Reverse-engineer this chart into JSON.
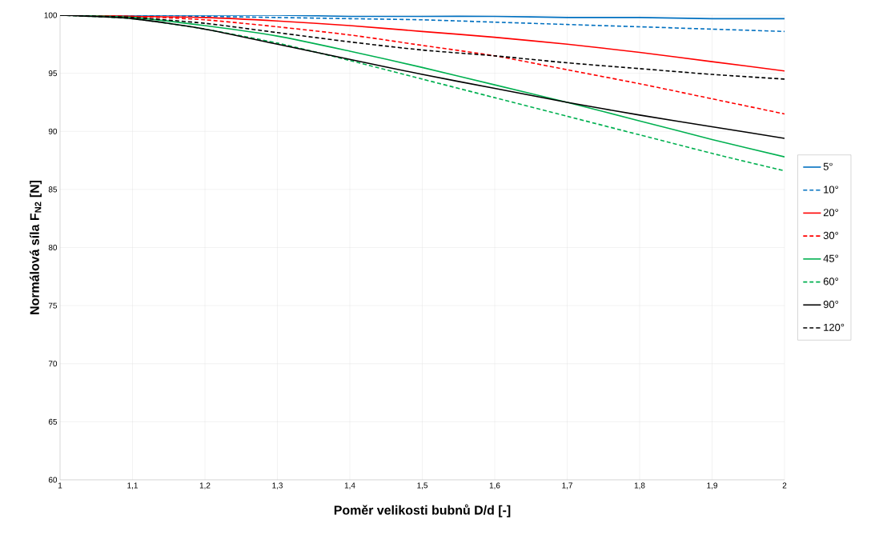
{
  "chart_data": {
    "type": "line",
    "xlabel": "Poměr velikosti bubnů D/d [-]",
    "ylabel": "Normálová síla F$_{N2}$ [N]",
    "x": [
      1,
      1.1,
      1.2,
      1.3,
      1.4,
      1.5,
      1.6,
      1.7,
      1.8,
      1.9,
      2
    ],
    "xlim": [
      1,
      2
    ],
    "ylim": [
      60,
      100
    ],
    "xticks": [
      1,
      {
        "value": 1.1,
        "label": "1,1"
      },
      {
        "value": 1.2,
        "label": "1,2"
      },
      {
        "value": 1.3,
        "label": "1,3"
      },
      {
        "value": 1.4,
        "label": "1,4"
      },
      {
        "value": 1.5,
        "label": "1,5"
      },
      {
        "value": 1.6,
        "label": "1,6"
      },
      {
        "value": 1.7,
        "label": "1,7"
      },
      {
        "value": 1.8,
        "label": "1,8"
      },
      {
        "value": 1.9,
        "label": "1,9"
      },
      2
    ],
    "yticks": [
      60,
      65,
      70,
      75,
      80,
      85,
      90,
      95,
      100
    ],
    "grid": true,
    "legend": "right",
    "marker": "none",
    "series": [
      {
        "name": "5°",
        "color": "#0070c0",
        "line_style": "solid",
        "values": [
          100,
          100,
          100,
          100,
          99.9,
          99.9,
          99.9,
          99.8,
          99.8,
          99.7,
          99.7
        ]
      },
      {
        "name": "10°",
        "color": "#0070c0",
        "line_style": "dashed",
        "values": [
          100,
          100,
          99.9,
          99.8,
          99.7,
          99.6,
          99.4,
          99.2,
          99.0,
          98.8,
          98.6
        ]
      },
      {
        "name": "20°",
        "color": "#ff0000",
        "line_style": "solid",
        "values": [
          100,
          99.9,
          99.8,
          99.5,
          99.1,
          98.6,
          98.1,
          97.5,
          96.8,
          96.0,
          95.2
        ]
      },
      {
        "name": "30°",
        "color": "#ff0000",
        "line_style": "dashed",
        "values": [
          100,
          99.9,
          99.6,
          99.0,
          98.3,
          97.4,
          96.5,
          95.3,
          94.1,
          92.8,
          91.5
        ]
      },
      {
        "name": "45°",
        "color": "#00b050",
        "line_style": "solid",
        "values": [
          100,
          99.8,
          99.1,
          98.2,
          96.9,
          95.5,
          94.0,
          92.5,
          90.9,
          89.3,
          87.8
        ]
      },
      {
        "name": "60°",
        "color": "#00b050",
        "line_style": "dashed",
        "values": [
          100,
          99.7,
          98.8,
          97.6,
          96.1,
          94.5,
          92.9,
          91.3,
          89.7,
          88.1,
          86.6
        ]
      },
      {
        "name": "90°",
        "color": "#000000",
        "line_style": "solid",
        "values": [
          100,
          99.7,
          98.8,
          97.5,
          96.2,
          94.9,
          93.7,
          92.5,
          91.4,
          90.4,
          89.4
        ]
      },
      {
        "name": "120°",
        "color": "#000000",
        "line_style": "dashed",
        "values": [
          100,
          99.8,
          99.3,
          98.5,
          97.7,
          97.0,
          96.5,
          95.9,
          95.4,
          94.9,
          94.5
        ]
      }
    ]
  }
}
